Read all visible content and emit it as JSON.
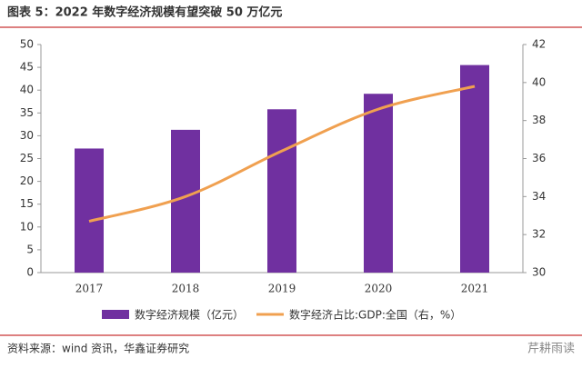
{
  "chart_data": {
    "type": "bar",
    "title": "图表 5：2022 年数字经济规模有望突破 50 万亿元",
    "categories": [
      "2017",
      "2018",
      "2019",
      "2020",
      "2021"
    ],
    "series": [
      {
        "name": "数字经济规模（亿元）",
        "type": "bar",
        "color": "#7030a0",
        "values": [
          27.2,
          31.3,
          35.8,
          39.2,
          45.5
        ]
      },
      {
        "name": "数字经济占比:GDP:全国（右，%）",
        "type": "line",
        "axis": "y2",
        "color": "#f0a050",
        "values": [
          32.7,
          34.0,
          36.4,
          38.6,
          39.8
        ]
      }
    ],
    "ylim": [
      0,
      50
    ],
    "yticks": [
      0,
      5,
      10,
      15,
      20,
      25,
      30,
      35,
      40,
      45,
      50
    ],
    "y2lim": [
      30,
      42
    ],
    "y2ticks": [
      30,
      32,
      34,
      36,
      38,
      40,
      42
    ],
    "source": "资料来源：wind 资讯，华鑫证券研究",
    "watermark": "芹耕雨读"
  }
}
